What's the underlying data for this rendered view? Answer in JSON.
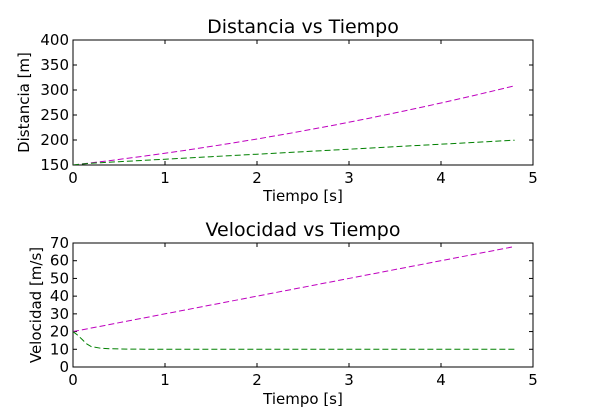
{
  "chart_data": [
    {
      "type": "line",
      "title": "Distancia vs Tiempo",
      "xlabel": "Tiempo [s]",
      "ylabel": "Distancia [m]",
      "xlim": [
        0,
        5
      ],
      "ylim": [
        150,
        400
      ],
      "xticks": [
        "0",
        "1",
        "2",
        "3",
        "4",
        "5"
      ],
      "yticks": [
        "150",
        "200",
        "250",
        "300",
        "350",
        "400"
      ],
      "grid": false,
      "series": [
        {
          "color": "#bf00bf",
          "dash": "dashed",
          "x": [
            0,
            0.4,
            0.8,
            1.2,
            1.6,
            2.0,
            2.4,
            2.8,
            3.2,
            3.6,
            4.0,
            4.4,
            4.8
          ],
          "y": [
            150,
            158.8,
            168.4,
            178.8,
            190.0,
            202.0,
            214.8,
            228.4,
            242.8,
            258.0,
            274.0,
            290.8,
            308.4
          ]
        },
        {
          "color": "#008000",
          "dash": "dashed",
          "x": [
            0,
            0.1,
            0.2,
            0.3,
            0.5,
            1.0,
            1.5,
            2.0,
            2.5,
            3.0,
            3.5,
            4.0,
            4.5,
            4.8
          ],
          "y": [
            150,
            152,
            153.5,
            154.6,
            156.6,
            161.6,
            166.6,
            171.6,
            176.6,
            181.6,
            186.6,
            191.6,
            196.6,
            199.6
          ]
        }
      ]
    },
    {
      "type": "line",
      "title": "Velocidad vs Tiempo",
      "xlabel": "Tiempo [s]",
      "ylabel": "Velocidad [m/s]",
      "xlim": [
        0,
        5
      ],
      "ylim": [
        0,
        70
      ],
      "xticks": [
        "0",
        "1",
        "2",
        "3",
        "4",
        "5"
      ],
      "yticks": [
        "0",
        "10",
        "20",
        "30",
        "40",
        "50",
        "60",
        "70"
      ],
      "grid": false,
      "series": [
        {
          "color": "#bf00bf",
          "dash": "dashed",
          "x": [
            0,
            4.8
          ],
          "y": [
            20,
            68
          ]
        },
        {
          "color": "#008000",
          "dash": "dashed",
          "x": [
            0,
            0.05,
            0.1,
            0.15,
            0.2,
            0.3,
            0.4,
            0.6,
            1.0,
            2.0,
            3.0,
            4.0,
            4.8
          ],
          "y": [
            20,
            18,
            15.5,
            13,
            11.5,
            10.6,
            10.3,
            10.1,
            10.0,
            10.0,
            10.0,
            10.0,
            10.0
          ]
        }
      ]
    }
  ]
}
